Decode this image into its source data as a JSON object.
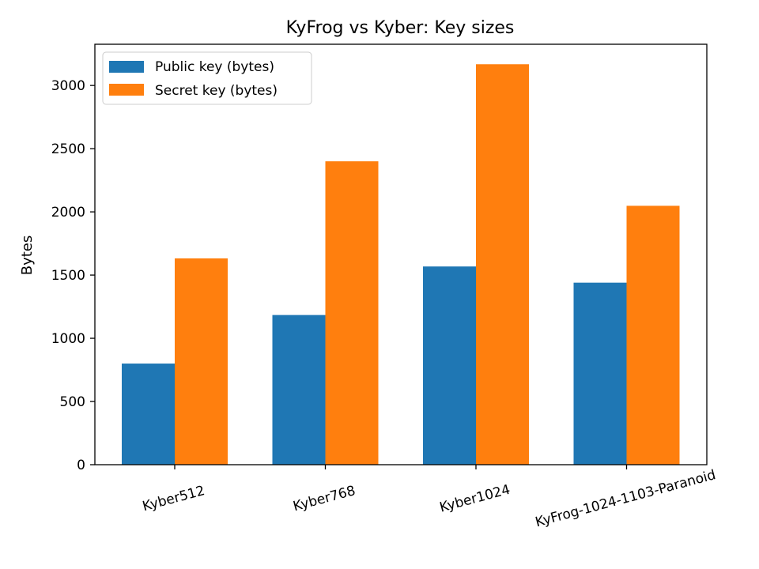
{
  "chart_data": {
    "type": "bar",
    "title": "KyFrog vs Kyber: Key sizes",
    "xlabel": "",
    "ylabel": "Bytes",
    "categories": [
      "Kyber512",
      "Kyber768",
      "Kyber1024",
      "KyFrog-1024-1103-Paranoid"
    ],
    "series": [
      {
        "name": "Public key (bytes)",
        "values": [
          800,
          1184,
          1568,
          1440
        ],
        "color": "#1f77b4"
      },
      {
        "name": "Secret key (bytes)",
        "values": [
          1632,
          2400,
          3168,
          2048
        ],
        "color": "#ff7f0e"
      }
    ],
    "ylim": [
      0,
      3326
    ],
    "yticks": [
      0,
      500,
      1000,
      1500,
      2000,
      2500,
      3000
    ],
    "grid": false,
    "legend_position": "top-left",
    "xtick_rotation_deg": -15
  }
}
